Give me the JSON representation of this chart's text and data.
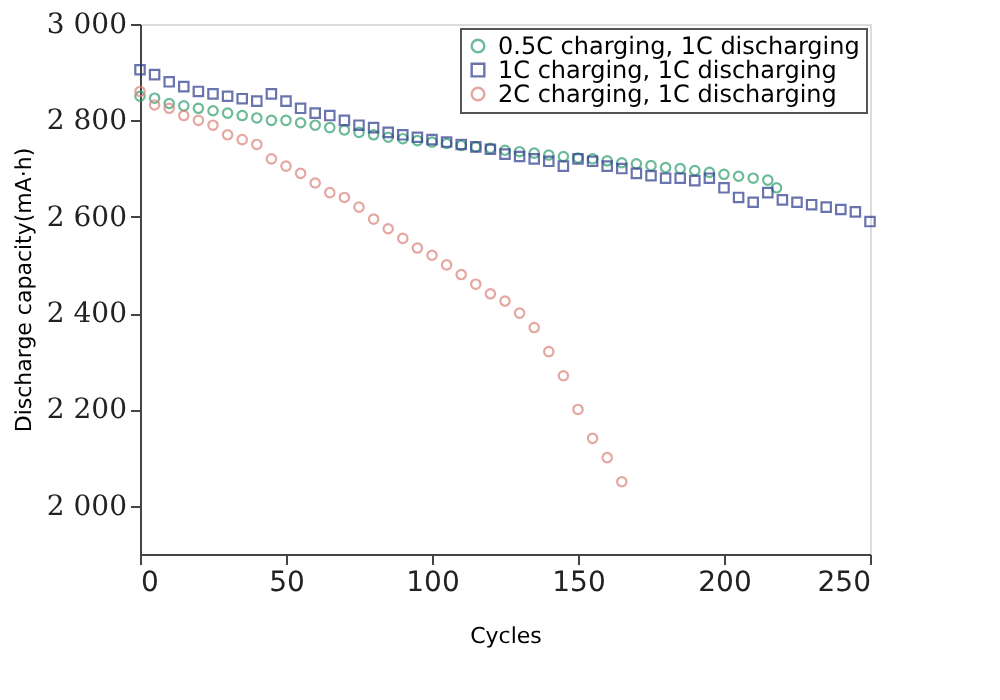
{
  "chart_data": {
    "type": "scatter",
    "xlabel": "Cycles",
    "ylabel": "Discharge capacity(mA·h)",
    "xlim": [
      0,
      250
    ],
    "xticks": [
      0,
      50,
      100,
      150,
      200,
      250
    ],
    "ylim": [
      1900,
      3000
    ],
    "yticks": [
      {
        "value": 2000,
        "label": "2 000"
      },
      {
        "value": 2200,
        "label": "2 200"
      },
      {
        "value": 2400,
        "label": "2 400"
      },
      {
        "value": 2600,
        "label": "2 600"
      },
      {
        "value": 2800,
        "label": "2 800"
      },
      {
        "value": 3000,
        "label": "3 000"
      }
    ],
    "grid": false,
    "legend": "top right",
    "series": [
      {
        "name": "0.5C charging, 1C discharging",
        "color": "#2e9e6e",
        "marker": "circle",
        "x": [
          0,
          5,
          10,
          15,
          20,
          25,
          30,
          35,
          40,
          45,
          50,
          55,
          60,
          65,
          70,
          75,
          80,
          85,
          90,
          95,
          100,
          105,
          110,
          115,
          120,
          125,
          130,
          135,
          140,
          145,
          150,
          155,
          160,
          165,
          170,
          175,
          180,
          185,
          190,
          195,
          200,
          205,
          210,
          215,
          218
        ],
        "values": [
          2850,
          2846,
          2835,
          2830,
          2825,
          2820,
          2815,
          2810,
          2805,
          2800,
          2800,
          2795,
          2790,
          2785,
          2780,
          2775,
          2770,
          2765,
          2762,
          2758,
          2755,
          2752,
          2748,
          2745,
          2742,
          2738,
          2735,
          2732,
          2728,
          2725,
          2722,
          2720,
          2716,
          2712,
          2710,
          2706,
          2702,
          2700,
          2696,
          2692,
          2688,
          2684,
          2680,
          2676,
          2660
        ]
      },
      {
        "name": "1C charging, 1C discharging",
        "color": "#2b3a8c",
        "marker": "square",
        "x": [
          0,
          5,
          10,
          15,
          20,
          25,
          30,
          35,
          40,
          45,
          50,
          55,
          60,
          65,
          70,
          75,
          80,
          85,
          90,
          95,
          100,
          105,
          110,
          115,
          120,
          125,
          130,
          135,
          140,
          145,
          150,
          155,
          160,
          165,
          170,
          175,
          180,
          185,
          190,
          195,
          200,
          205,
          210,
          215,
          220,
          225,
          230,
          235,
          240,
          245,
          250
        ],
        "values": [
          2905,
          2895,
          2880,
          2870,
          2860,
          2855,
          2850,
          2845,
          2840,
          2855,
          2840,
          2825,
          2815,
          2810,
          2800,
          2790,
          2785,
          2775,
          2770,
          2765,
          2760,
          2755,
          2750,
          2745,
          2740,
          2730,
          2725,
          2720,
          2715,
          2705,
          2720,
          2715,
          2705,
          2700,
          2690,
          2685,
          2680,
          2680,
          2675,
          2680,
          2660,
          2640,
          2630,
          2650,
          2635,
          2630,
          2625,
          2620,
          2615,
          2610,
          2590
        ]
      },
      {
        "name": "2C charging, 1C discharging",
        "color": "#d9827a",
        "marker": "circle",
        "x": [
          0,
          5,
          10,
          15,
          20,
          25,
          30,
          35,
          40,
          45,
          50,
          55,
          60,
          65,
          70,
          75,
          80,
          85,
          90,
          95,
          100,
          105,
          110,
          115,
          120,
          125,
          130,
          135,
          140,
          145,
          150,
          155,
          160,
          165
        ],
        "values": [
          2860,
          2832,
          2825,
          2810,
          2800,
          2790,
          2770,
          2760,
          2750,
          2720,
          2705,
          2690,
          2670,
          2650,
          2640,
          2620,
          2595,
          2575,
          2555,
          2535,
          2520,
          2500,
          2480,
          2460,
          2440,
          2425,
          2400,
          2370,
          2320,
          2270,
          2200,
          2140,
          2100,
          2050
        ]
      }
    ]
  }
}
